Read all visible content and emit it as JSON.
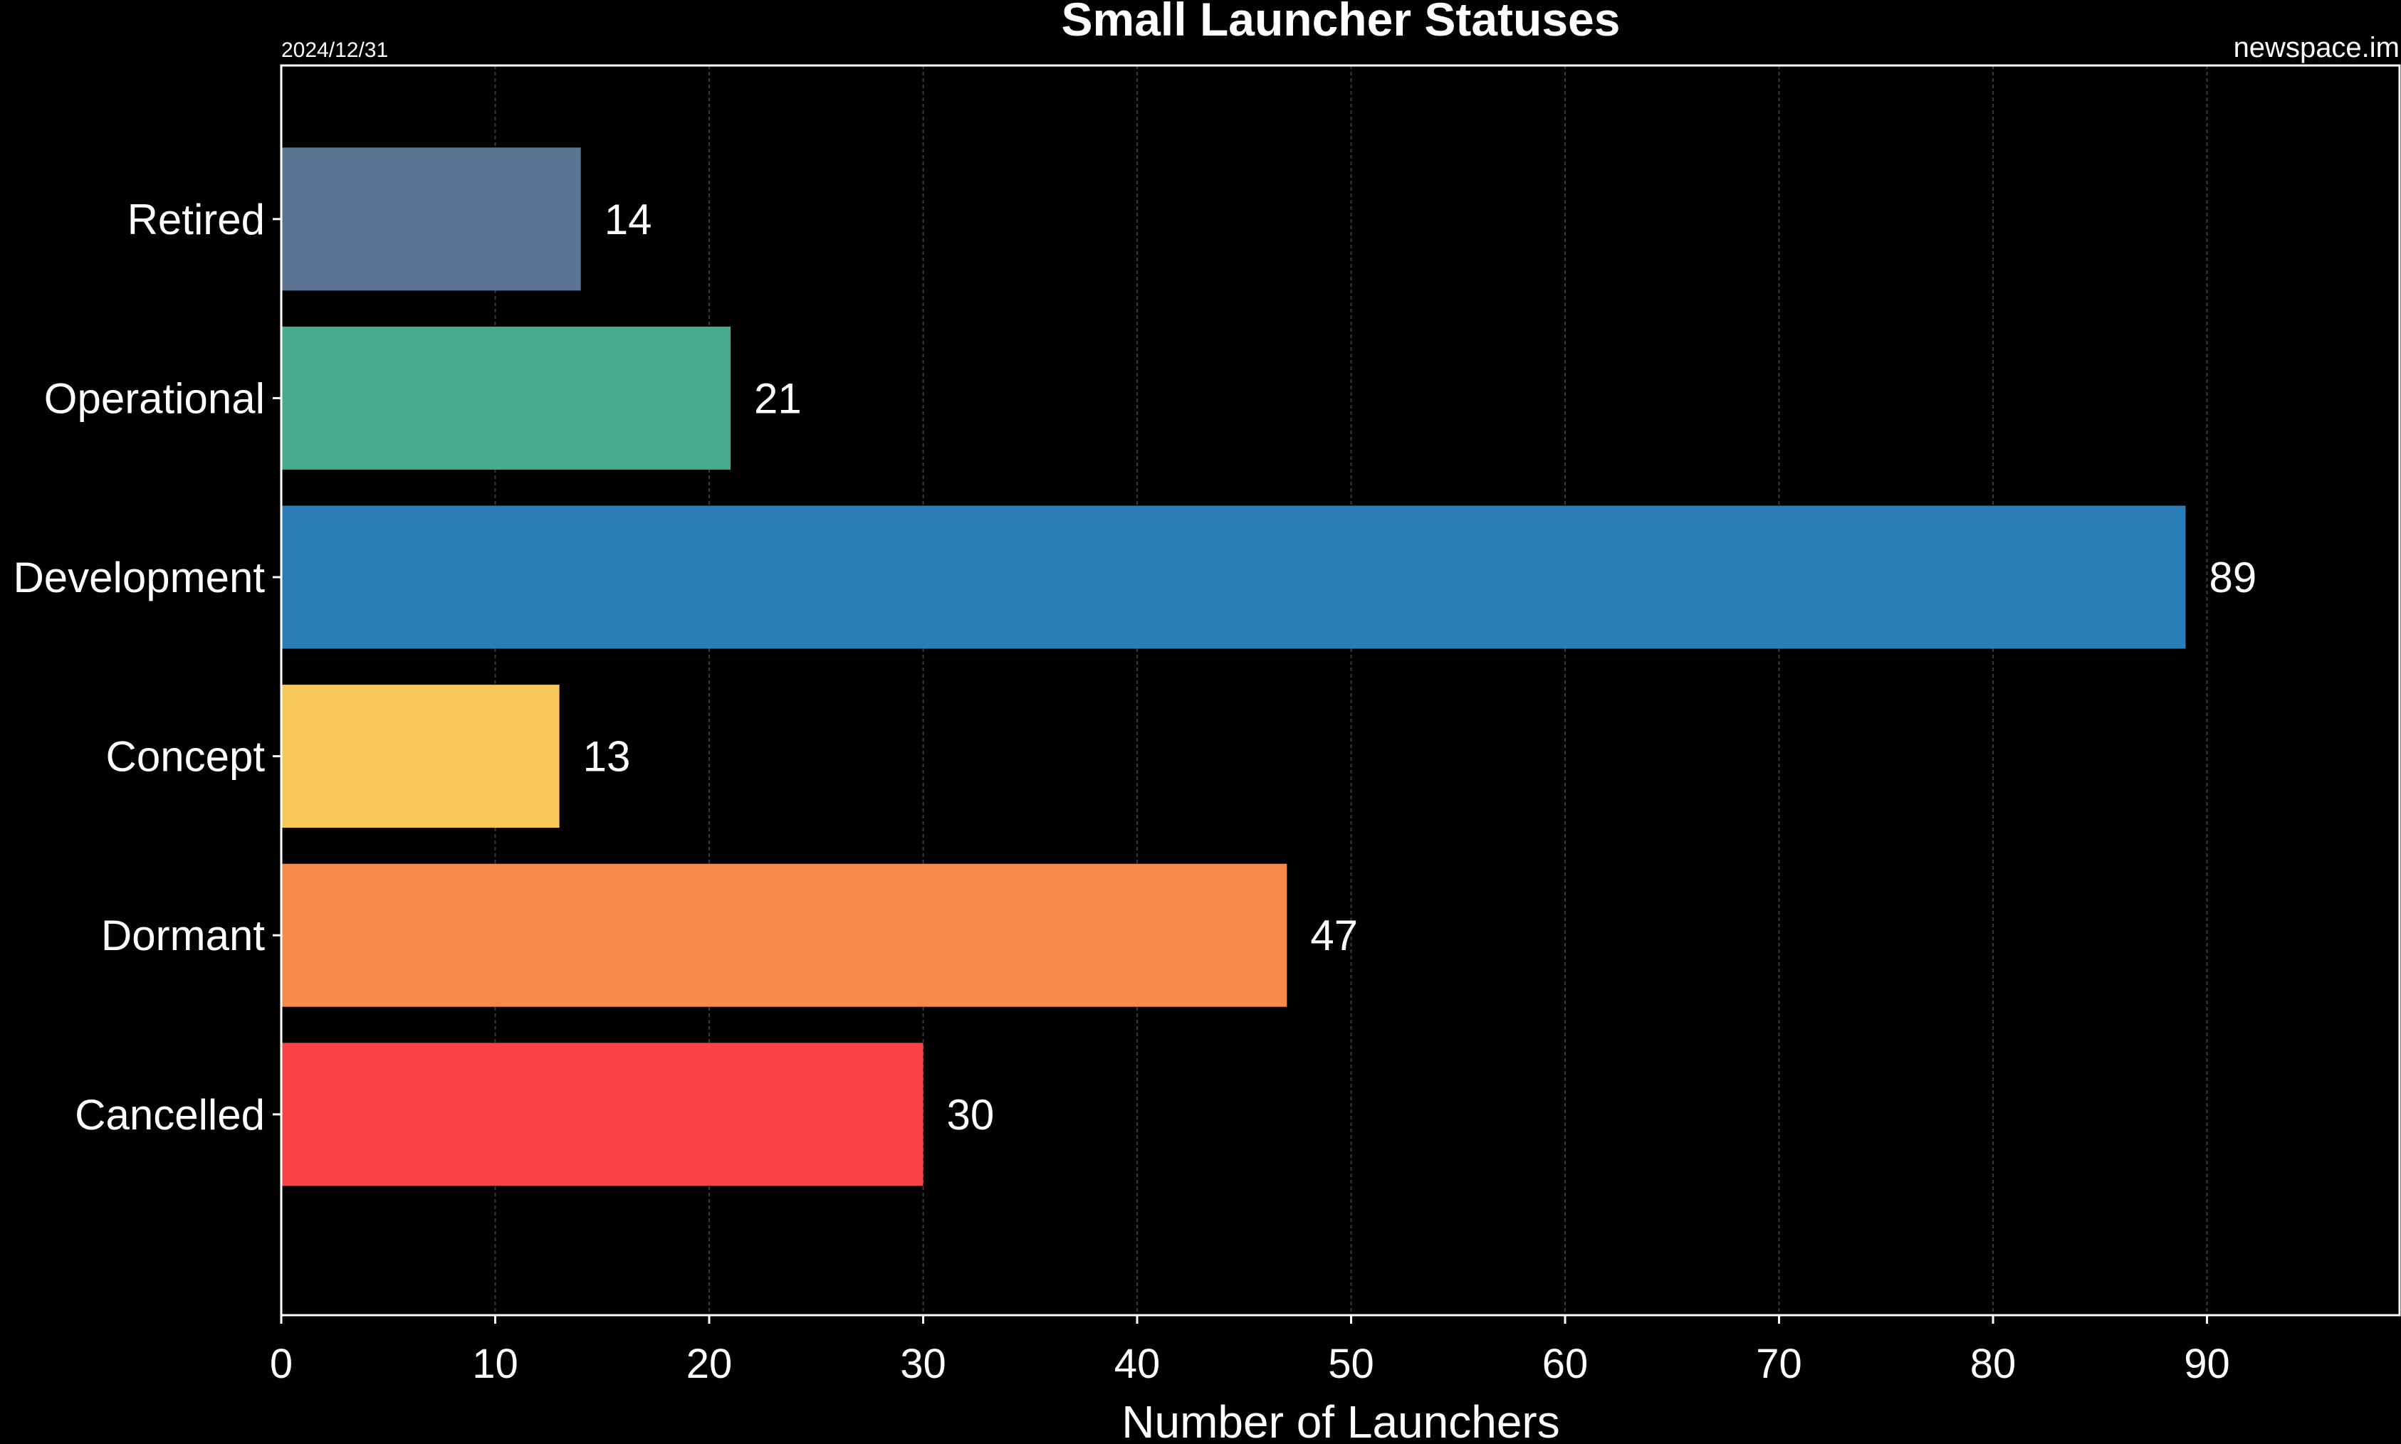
{
  "header": {
    "date": "2024/12/31",
    "source": "newspace.im"
  },
  "chart_data": {
    "type": "bar",
    "orientation": "horizontal",
    "title": "Small Launcher Statuses",
    "xlabel": "Number of Launchers",
    "ylabel": "",
    "categories": [
      "Retired",
      "Operational",
      "Development",
      "Concept",
      "Dormant",
      "Cancelled"
    ],
    "values": [
      14,
      21,
      89,
      13,
      47,
      30
    ],
    "colors": [
      "#5a7593",
      "#46ab8d",
      "#2a7db5",
      "#f7c758",
      "#f8894c",
      "#f94346"
    ],
    "xlim": [
      0,
      99
    ],
    "xticks": [
      0,
      10,
      20,
      30,
      40,
      50,
      60,
      70,
      80,
      90
    ],
    "grid": "vertical",
    "legend": "none",
    "background": "#000000",
    "text_color": "#ffffff"
  }
}
